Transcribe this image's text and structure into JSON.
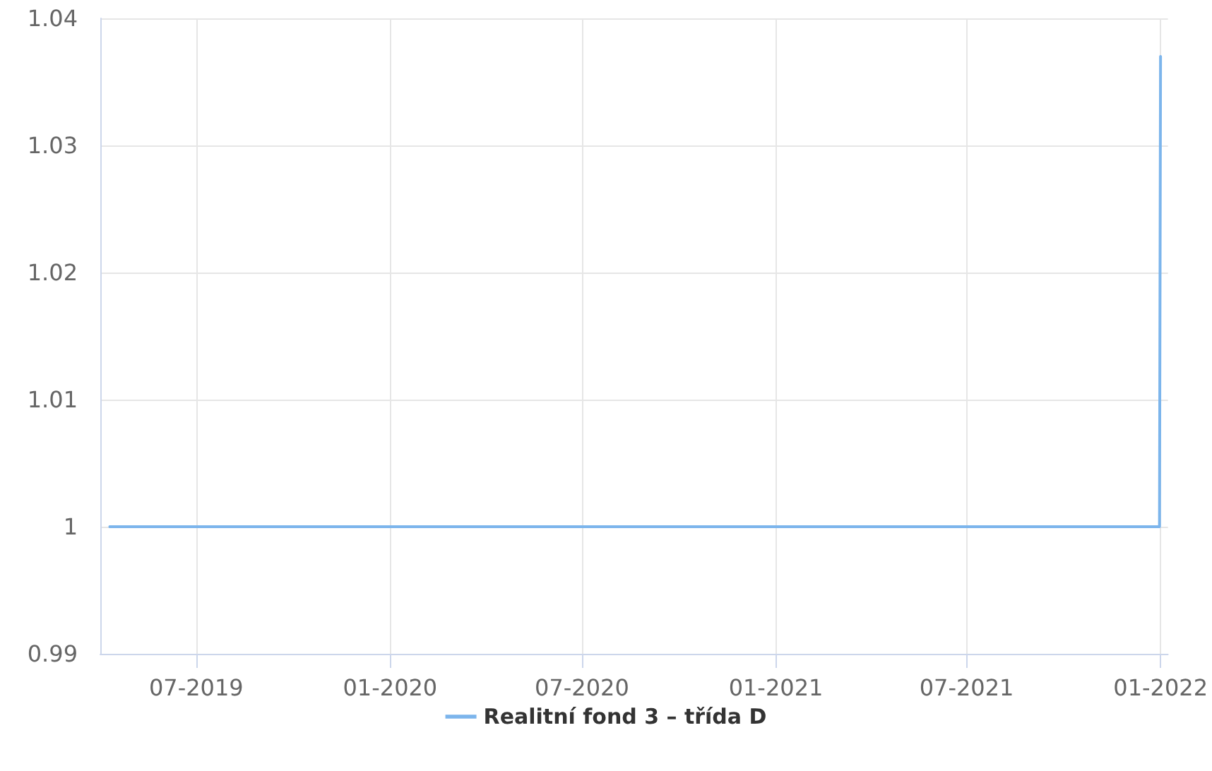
{
  "chart_data": {
    "type": "line",
    "x": [
      "2019-04-10",
      "2021-12-31",
      "2022-01-01"
    ],
    "series": [
      {
        "name": "Realitní fond 3 – třída D",
        "color": "#7cb5ec",
        "values": [
          1,
          1,
          1.037
        ]
      }
    ],
    "xlim": [
      "2019-04-01",
      "2022-01-08"
    ],
    "xticks": [
      {
        "value": "2019-07",
        "label": "07-2019"
      },
      {
        "value": "2020-01",
        "label": "01-2020"
      },
      {
        "value": "2020-07",
        "label": "07-2020"
      },
      {
        "value": "2021-01",
        "label": "01-2021"
      },
      {
        "value": "2021-07",
        "label": "07-2021"
      },
      {
        "value": "2022-01",
        "label": "01-2022"
      }
    ],
    "ylim": [
      0.99,
      1.04
    ],
    "yticks": [
      0.99,
      1,
      1.01,
      1.02,
      1.03,
      1.04
    ],
    "grid": true,
    "legend": "bottom",
    "marker": "none",
    "line_style": "solid"
  }
}
